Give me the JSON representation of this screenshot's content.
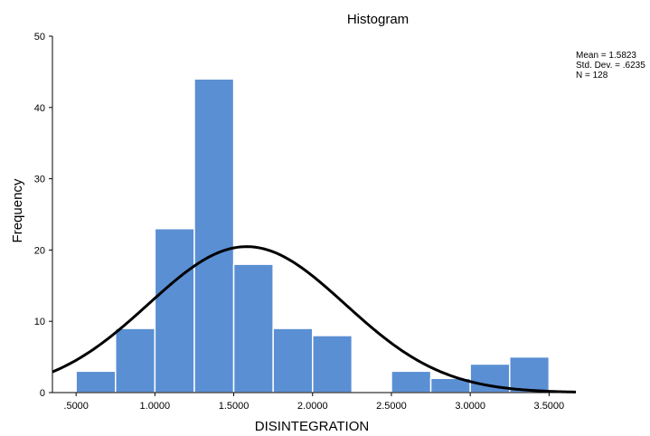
{
  "chart_data": {
    "type": "bar",
    "title": "Histogram",
    "xlabel": "DISINTEGRATION",
    "ylabel": "Frequency",
    "xlim": [
      0.35,
      3.67
    ],
    "ylim": [
      0,
      50
    ],
    "x_ticks": [
      0.5,
      1.0,
      1.5,
      2.0,
      2.5,
      3.0,
      3.5
    ],
    "x_tick_labels": [
      ".5000",
      "1.0000",
      "1.5000",
      "2.0000",
      "2.5000",
      "3.0000",
      "3.5000"
    ],
    "y_ticks": [
      0,
      10,
      20,
      30,
      40,
      50
    ],
    "y_tick_labels": [
      "0",
      "10",
      "20",
      "30",
      "40",
      "50"
    ],
    "bin_width": 0.25,
    "bins": [
      {
        "start": 0.5,
        "end": 0.75,
        "count": 3
      },
      {
        "start": 0.75,
        "end": 1.0,
        "count": 9
      },
      {
        "start": 1.0,
        "end": 1.25,
        "count": 23
      },
      {
        "start": 1.25,
        "end": 1.5,
        "count": 44
      },
      {
        "start": 1.5,
        "end": 1.75,
        "count": 18
      },
      {
        "start": 1.75,
        "end": 2.0,
        "count": 9
      },
      {
        "start": 2.0,
        "end": 2.25,
        "count": 8
      },
      {
        "start": 2.25,
        "end": 2.5,
        "count": 0
      },
      {
        "start": 2.5,
        "end": 2.75,
        "count": 3
      },
      {
        "start": 2.75,
        "end": 3.0,
        "count": 2
      },
      {
        "start": 3.0,
        "end": 3.25,
        "count": 4
      },
      {
        "start": 3.25,
        "end": 3.5,
        "count": 5
      }
    ],
    "normal_curve": {
      "mean": 1.5823,
      "std_dev": 0.6235,
      "n": 128
    },
    "stats_text": {
      "mean": "Mean = 1.5823",
      "std_dev": "Std. Dev. = .6235",
      "n": "N = 128"
    },
    "colors": {
      "bar_fill": "#5a8fd3",
      "bar_stroke": "#ffffff",
      "curve": "#000000",
      "axis": "#000000"
    },
    "grid": false
  }
}
